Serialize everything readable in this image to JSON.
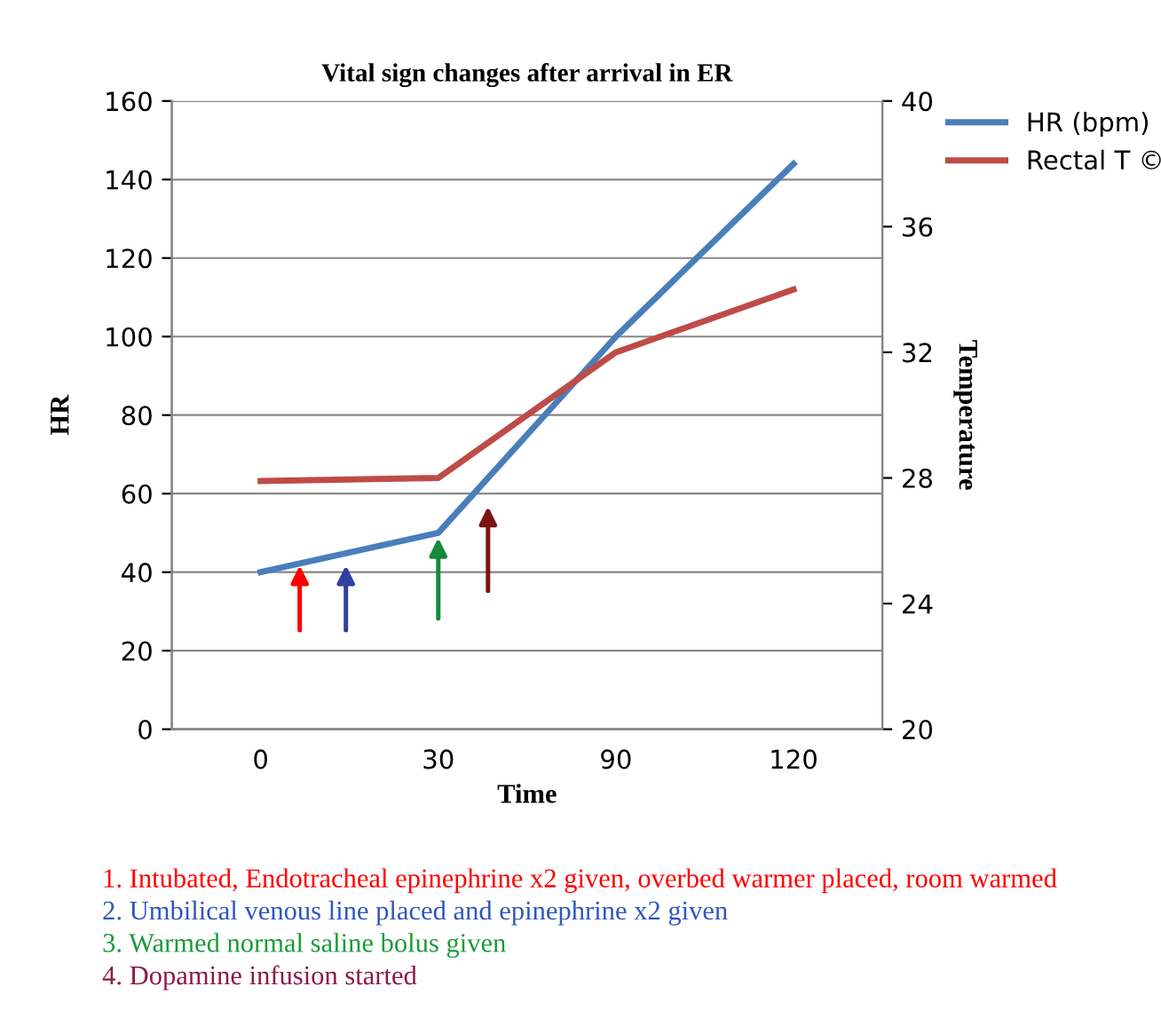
{
  "chart_data": {
    "type": "line",
    "title": "Vital sign changes after arrival in ER",
    "xlabel": "Time",
    "ylabel": "HR",
    "y2label": "Temperature",
    "categories": [
      "0",
      "30",
      "90",
      "120"
    ],
    "series": [
      {
        "name": "HR (bpm)",
        "color": "#4a7ebb",
        "values": [
          40,
          50,
          100,
          144
        ]
      },
      {
        "name": "Rectal T ©",
        "color": "#be4b48",
        "values": [
          27.9,
          28.0,
          32,
          34
        ],
        "axis": "y2"
      }
    ],
    "ylim": [
      0,
      160
    ],
    "yticks": [
      0,
      20,
      40,
      60,
      80,
      100,
      120,
      140,
      160
    ],
    "y2lim": [
      20,
      40
    ],
    "y2ticks": [
      20,
      24,
      28,
      32,
      36,
      40
    ],
    "grid": "y",
    "legend": "top right",
    "marker": "none",
    "line_style": "solid",
    "annotations": [
      "1. Intubated, Endotracheal epinephrine x2 given, overbed warmer placed, room warmed",
      "2. Umbilical venous line placed and epinephrine x2 given",
      "3. Warmed normal saline bolus given",
      "4. Dopamine infusion started"
    ]
  }
}
